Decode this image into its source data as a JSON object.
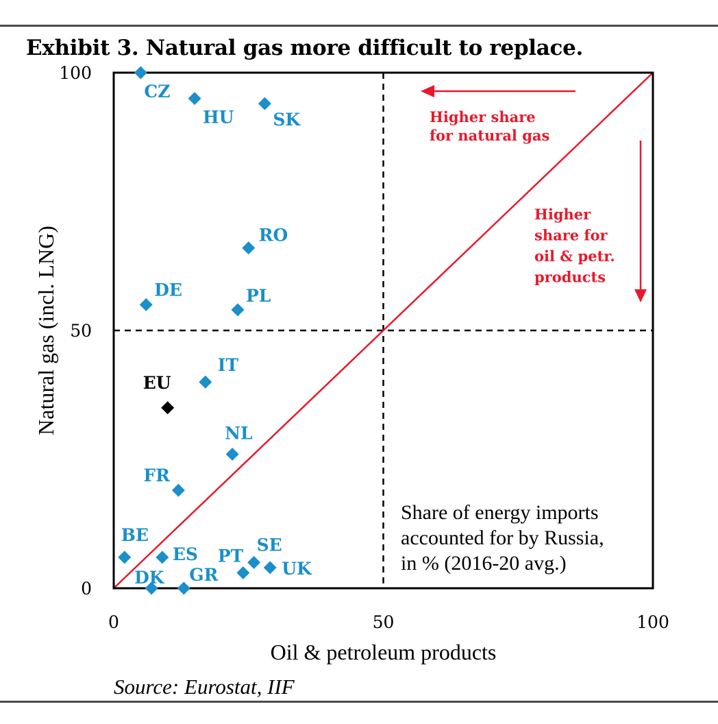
{
  "chart_data": {
    "type": "scatter",
    "title": "Exhibit 3. Natural gas more difficult to replace.",
    "source": "Source: Eurostat, IIF",
    "xlabel": "Oil & petroleum products",
    "ylabel": "Natural gas (incl. LNG)",
    "xlim": [
      0,
      100
    ],
    "ylim": [
      0,
      100
    ],
    "x_ticks": [
      "0",
      "50",
      "100"
    ],
    "y_ticks": [
      "0",
      "50",
      "100"
    ],
    "reference_lines": {
      "vertical_x": 50,
      "horizontal_y": 50,
      "diagonal": "y = x"
    },
    "note_lines": [
      "Share of energy imports",
      "accounted for by Russia,",
      "in % (2016-20 avg.)"
    ],
    "annotations": {
      "natural_gas": [
        "Higher share",
        "for natural gas"
      ],
      "oil": [
        "Higher",
        "share for",
        "oil & petr.",
        "products"
      ]
    },
    "colors": {
      "countries": "#1a8fc9",
      "eu": "#000000",
      "accent": "#e8192c"
    },
    "points": [
      {
        "label": "CZ",
        "x": 5,
        "y": 100,
        "color": "#1a8fc9"
      },
      {
        "label": "HU",
        "x": 15,
        "y": 95,
        "color": "#1a8fc9"
      },
      {
        "label": "SK",
        "x": 28,
        "y": 94,
        "color": "#1a8fc9"
      },
      {
        "label": "RO",
        "x": 25,
        "y": 66,
        "color": "#1a8fc9"
      },
      {
        "label": "DE",
        "x": 6,
        "y": 55,
        "color": "#1a8fc9"
      },
      {
        "label": "PL",
        "x": 23,
        "y": 54,
        "color": "#1a8fc9"
      },
      {
        "label": "IT",
        "x": 17,
        "y": 40,
        "color": "#1a8fc9"
      },
      {
        "label": "EU",
        "x": 10,
        "y": 35,
        "color": "#000000"
      },
      {
        "label": "NL",
        "x": 22,
        "y": 26,
        "color": "#1a8fc9"
      },
      {
        "label": "FR",
        "x": 12,
        "y": 19,
        "color": "#1a8fc9"
      },
      {
        "label": "BE",
        "x": 2,
        "y": 6,
        "color": "#1a8fc9"
      },
      {
        "label": "ES",
        "x": 9,
        "y": 6,
        "color": "#1a8fc9"
      },
      {
        "label": "PT",
        "x": 24,
        "y": 3,
        "color": "#1a8fc9"
      },
      {
        "label": "SE",
        "x": 26,
        "y": 5,
        "color": "#1a8fc9"
      },
      {
        "label": "UK",
        "x": 29,
        "y": 4,
        "color": "#1a8fc9"
      },
      {
        "label": "DK",
        "x": 7,
        "y": 0,
        "color": "#1a8fc9"
      },
      {
        "label": "GR",
        "x": 13,
        "y": 0,
        "color": "#1a8fc9"
      }
    ]
  }
}
